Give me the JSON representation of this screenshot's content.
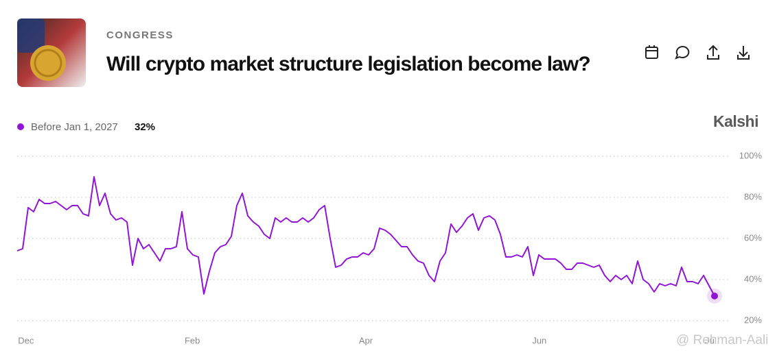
{
  "header": {
    "category": "CONGRESS",
    "title": "Will crypto market structure legislation become law?",
    "brand": "Kalshi"
  },
  "watermark": "@ Rehman-Aali",
  "chart_data": {
    "type": "line",
    "series": [
      {
        "name": "Before Jan 1, 2027",
        "color": "#9013d6",
        "last_label": "32%",
        "values": [
          54,
          55,
          75,
          73,
          79,
          77,
          77,
          78,
          76,
          74,
          76,
          76,
          72,
          71,
          90,
          76,
          82,
          72,
          69,
          70,
          68,
          47,
          60,
          55,
          57,
          53,
          49,
          55,
          55,
          56,
          73,
          55,
          52,
          51,
          33,
          44,
          53,
          56,
          57,
          61,
          76,
          82,
          71,
          68,
          66,
          62,
          60,
          70,
          68,
          70,
          68,
          68,
          70,
          68,
          70,
          74,
          76,
          60,
          46,
          47,
          50,
          51,
          51,
          53,
          52,
          55,
          65,
          64,
          62,
          59,
          56,
          56,
          52,
          49,
          48,
          42,
          39,
          49,
          53,
          67,
          63,
          66,
          70,
          72,
          64,
          70,
          71,
          69,
          62,
          51,
          51,
          52,
          51,
          56,
          42,
          52,
          50,
          50,
          50,
          48,
          45,
          45,
          48,
          48,
          47,
          46,
          47,
          42,
          39,
          42,
          40,
          42,
          38,
          49,
          40,
          38,
          34,
          38,
          37,
          38,
          37,
          46,
          39,
          39,
          38,
          42,
          37,
          32
        ]
      }
    ],
    "xlim": [
      0,
      127
    ],
    "xticks": [
      {
        "value": 1.6,
        "label": "Dec"
      },
      {
        "value": 31.9,
        "label": "Feb"
      },
      {
        "value": 63.5,
        "label": "Apr"
      },
      {
        "value": 95.1,
        "label": "Jun"
      },
      {
        "value": 126.3,
        "label": "Jul"
      }
    ],
    "ylim": [
      20,
      100
    ],
    "yticks": [
      {
        "value": 20,
        "label": "20%"
      },
      {
        "value": 40,
        "label": "40%"
      },
      {
        "value": 60,
        "label": "60%"
      },
      {
        "value": 80,
        "label": "80%"
      },
      {
        "value": 100,
        "label": "100%"
      }
    ],
    "grid": true
  }
}
